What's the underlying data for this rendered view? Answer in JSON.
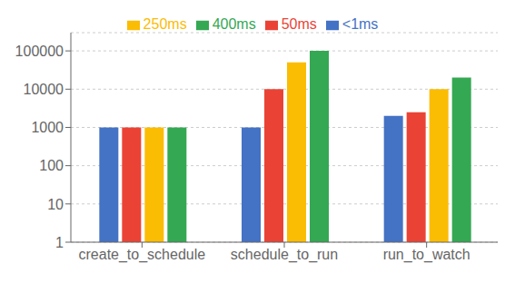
{
  "chart_data": {
    "type": "bar",
    "categories": [
      "create_to_schedule",
      "schedule_to_run",
      "run_to_watch"
    ],
    "series": [
      {
        "name": "<1ms",
        "color": "#4472C4",
        "values": [
          1000,
          1000,
          2000
        ]
      },
      {
        "name": "50ms",
        "color": "#EA4335",
        "values": [
          1000,
          10000,
          2500
        ]
      },
      {
        "name": "250ms",
        "color": "#FBBC04",
        "values": [
          1000,
          50000,
          10000
        ]
      },
      {
        "name": "400ms",
        "color": "#34A853",
        "values": [
          1000,
          100000,
          20000
        ]
      }
    ],
    "log": "y",
    "ylim": [
      1,
      300000
    ],
    "yticks": [
      1,
      10,
      100,
      1000,
      10000,
      100000
    ],
    "grid": true,
    "legend": "top"
  }
}
